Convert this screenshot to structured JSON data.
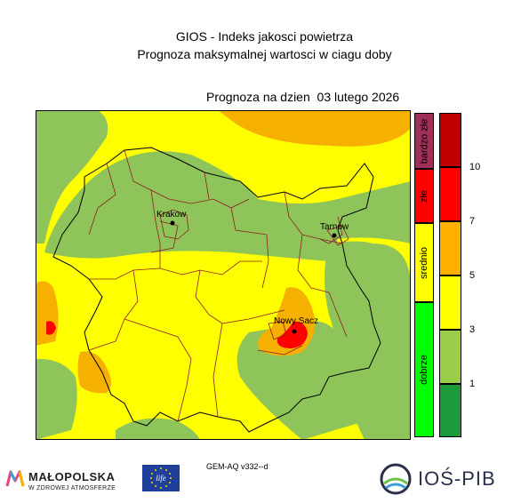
{
  "header": {
    "title": "GIOS - Indeks jakosci powietrza",
    "subtitle": "Prognoza maksymalnej wartosci w ciagu doby",
    "date_line": "Prognoza na dzien  03 lutego 2026"
  },
  "cities": [
    {
      "name": "Krakow"
    },
    {
      "name": "Tarnow"
    },
    {
      "name": "Nowy Sacz"
    }
  ],
  "category_legend": [
    {
      "label": "bardzo złe",
      "color": "#a0305a"
    },
    {
      "label": "złe",
      "color": "#ff0000"
    },
    {
      "label": "srednio",
      "color": "#ffff00"
    },
    {
      "label": "dobrze",
      "color": "#00ff00"
    }
  ],
  "value_legend": {
    "colors": [
      "#c00000",
      "#ff0000",
      "#ffb000",
      "#ffff00",
      "#9acd4a",
      "#1e9a3a"
    ],
    "ticks": [
      "10",
      "7",
      "5",
      "3",
      "1"
    ]
  },
  "map_colors": {
    "yellow": "#ffff00",
    "green": "#8fc45a",
    "orange": "#f5b000",
    "red": "#ff0000",
    "border": "#8b2020"
  },
  "model_label": "GEM-AQ v332--d",
  "logos": {
    "malopolska": "MAŁOPOLSKA",
    "malopolska_sub": "W ZDROWEJ ATMOSFERZE",
    "life": "life",
    "iospib": "IOŚ-PIB"
  }
}
